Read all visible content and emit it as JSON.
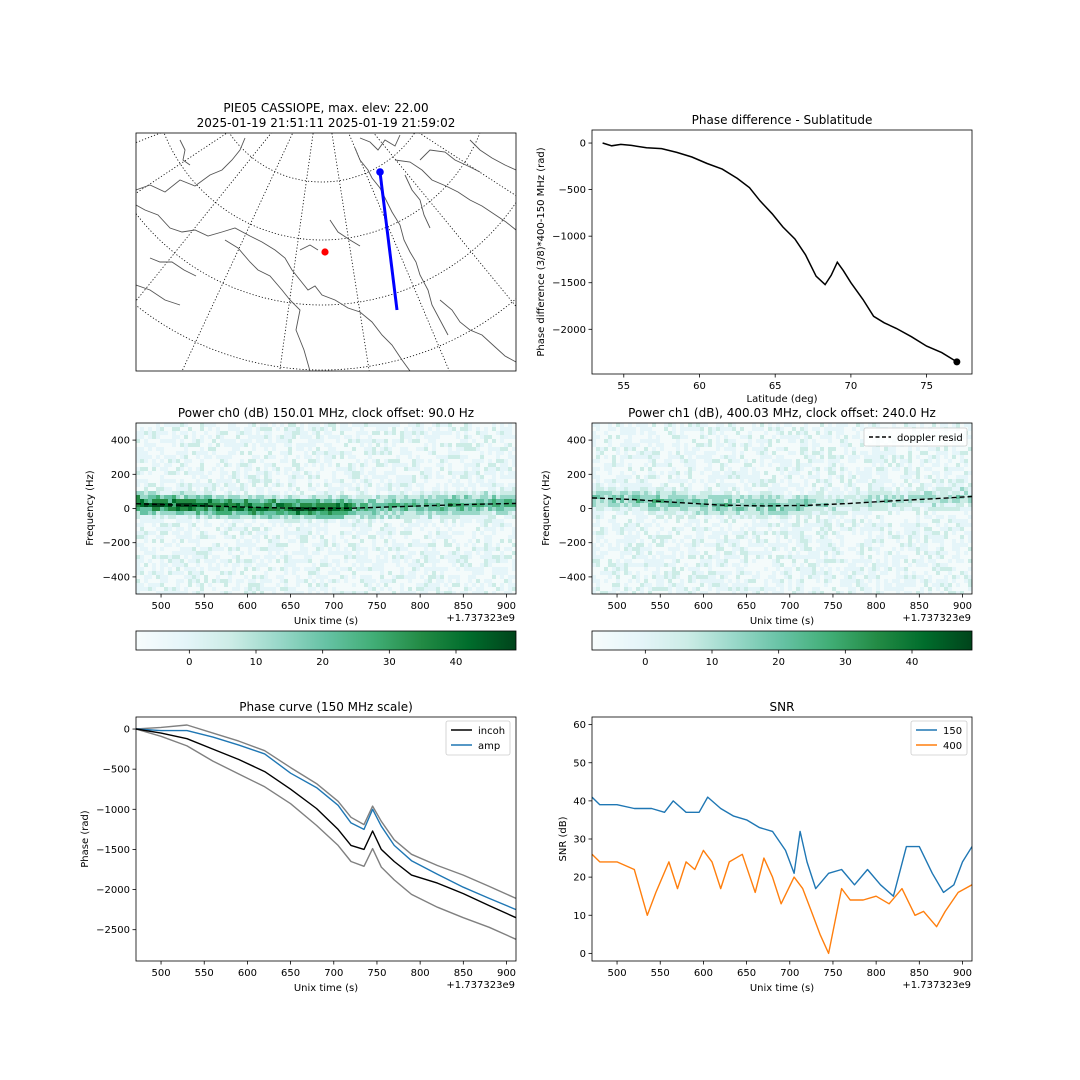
{
  "map_panel": {
    "title_line1": "PIE05 CASSIOPE, max. elev: 22.00",
    "title_line2": "2025-01-19 21:51:11 2025-01-19 21:59:02",
    "colors": {
      "track": "#0000ff",
      "start_marker": "#0000ff",
      "station": "#ff0000",
      "coast": "#555555",
      "graticule": "#000000"
    }
  },
  "chart_data": [
    {
      "id": "sublat",
      "type": "line",
      "title": "Phase difference - Sublatitude",
      "xlabel": "Latitude (deg)",
      "ylabel": "Phase difference (3/8)*400-150 MHz (rad)",
      "xlim": [
        52.9,
        78.0
      ],
      "ylim": [
        -2480,
        140
      ],
      "xticks": [
        55,
        60,
        65,
        70,
        75
      ],
      "yticks": [
        0,
        -500,
        -1000,
        -1500,
        -2000
      ],
      "series": [
        {
          "color": "#000000",
          "x": [
            53.6,
            54.2,
            54.8,
            55.5,
            56.5,
            57.5,
            58.5,
            59.5,
            60.5,
            61.5,
            62.5,
            63.3,
            64.0,
            64.8,
            65.5,
            66.3,
            67.0,
            67.7,
            68.3,
            68.7,
            69.1,
            69.5,
            70.0,
            70.8,
            71.5,
            72.2,
            73.0,
            74.0,
            75.0,
            76.0,
            77.0
          ],
          "y": [
            0,
            -30,
            -15,
            -25,
            -50,
            -60,
            -100,
            -150,
            -220,
            -280,
            -380,
            -480,
            -620,
            -760,
            -900,
            -1030,
            -1200,
            -1430,
            -1520,
            -1420,
            -1280,
            -1370,
            -1500,
            -1680,
            -1860,
            -1930,
            -1990,
            -2080,
            -2180,
            -2250,
            -2350
          ]
        }
      ],
      "end_marker": {
        "x": 77.0,
        "y": -2350
      }
    },
    {
      "id": "ch0",
      "type": "heatmap",
      "title": "Power ch0 (dB) 150.01 MHz, clock offset: 90.0 Hz",
      "xlabel": "Unix time (s)",
      "ylabel": "Frequency (Hz)",
      "offset_text": "+1.737323e9",
      "xlim": [
        471,
        911
      ],
      "ylim": [
        -500,
        500
      ],
      "xticks": [
        500,
        550,
        600,
        650,
        700,
        750,
        800,
        850,
        900
      ],
      "yticks": [
        400,
        200,
        0,
        -200,
        -400
      ],
      "doppler_x": [
        471,
        520,
        570,
        620,
        670,
        720,
        770,
        820,
        870,
        911
      ],
      "doppler_y": [
        28,
        20,
        12,
        5,
        0,
        2,
        10,
        18,
        25,
        30
      ],
      "colorbar": {
        "ticks": [
          0,
          10,
          20,
          30,
          40
        ],
        "range": [
          -8,
          49
        ]
      }
    },
    {
      "id": "ch1",
      "type": "heatmap",
      "title": "Power ch1 (dB), 400.03 MHz, clock offset: 240.0 Hz",
      "xlabel": "Unix time (s)",
      "ylabel": "Frequency (Hz)",
      "offset_text": "+1.737323e9",
      "legend": [
        "doppler resid"
      ],
      "xlim": [
        471,
        911
      ],
      "ylim": [
        -500,
        500
      ],
      "xticks": [
        500,
        550,
        600,
        650,
        700,
        750,
        800,
        850,
        900
      ],
      "yticks": [
        400,
        200,
        0,
        -200,
        -400
      ],
      "doppler_x": [
        471,
        520,
        570,
        620,
        670,
        720,
        770,
        820,
        870,
        911
      ],
      "doppler_y": [
        62,
        52,
        35,
        20,
        15,
        18,
        30,
        45,
        58,
        70
      ],
      "colorbar": {
        "ticks": [
          0,
          10,
          20,
          30,
          40
        ],
        "range": [
          -8,
          49
        ]
      }
    },
    {
      "id": "phase",
      "type": "line",
      "title": "Phase curve (150 MHz scale)",
      "xlabel": "Unix time (s)",
      "ylabel": "Phase (rad)",
      "offset_text": "+1.737323e9",
      "xlim": [
        471,
        911
      ],
      "ylim": [
        -2890,
        150
      ],
      "xticks": [
        500,
        550,
        600,
        650,
        700,
        750,
        800,
        850,
        900
      ],
      "yticks": [
        0,
        -500,
        -1000,
        -1500,
        -2000,
        -2500
      ],
      "legend": [
        "incoh",
        "amp"
      ],
      "series": [
        {
          "name": "incoh",
          "color": "#000000",
          "x": [
            471,
            500,
            530,
            560,
            590,
            620,
            650,
            680,
            705,
            720,
            735,
            745,
            755,
            770,
            790,
            820,
            850,
            880,
            911
          ],
          "y": [
            0,
            -50,
            -120,
            -250,
            -380,
            -530,
            -750,
            -990,
            -1250,
            -1450,
            -1500,
            -1270,
            -1500,
            -1650,
            -1820,
            -1920,
            -2050,
            -2200,
            -2350
          ]
        },
        {
          "name": "amp",
          "color": "#1f77b4",
          "x": [
            471,
            500,
            530,
            560,
            590,
            620,
            650,
            680,
            705,
            720,
            735,
            745,
            755,
            770,
            790,
            820,
            850,
            880,
            911
          ],
          "y": [
            0,
            -20,
            -20,
            -100,
            -200,
            -310,
            -550,
            -730,
            -950,
            -1170,
            -1250,
            -1000,
            -1210,
            -1450,
            -1640,
            -1810,
            -1970,
            -2110,
            -2250
          ]
        },
        {
          "name": "",
          "color": "#808080",
          "x": [
            471,
            500,
            530,
            560,
            590,
            620,
            650,
            680,
            705,
            720,
            735,
            745,
            755,
            770,
            790,
            820,
            850,
            880,
            911
          ],
          "y": [
            0,
            20,
            50,
            -50,
            -150,
            -270,
            -480,
            -680,
            -900,
            -1100,
            -1190,
            -960,
            -1150,
            -1380,
            -1560,
            -1700,
            -1820,
            -1960,
            -2110
          ]
        },
        {
          "name": "",
          "color": "#808080",
          "x": [
            471,
            500,
            530,
            560,
            590,
            620,
            650,
            680,
            705,
            720,
            735,
            745,
            755,
            770,
            790,
            820,
            850,
            880,
            911
          ],
          "y": [
            0,
            -90,
            -210,
            -400,
            -560,
            -720,
            -930,
            -1200,
            -1450,
            -1650,
            -1710,
            -1490,
            -1720,
            -1880,
            -2060,
            -2220,
            -2350,
            -2470,
            -2620
          ]
        }
      ]
    },
    {
      "id": "snr",
      "type": "line",
      "title": "SNR",
      "xlabel": "Unix time (s)",
      "ylabel": "SNR (dB)",
      "offset_text": "+1.737323e9",
      "xlim": [
        471,
        911
      ],
      "ylim": [
        -2,
        62
      ],
      "xticks": [
        500,
        550,
        600,
        650,
        700,
        750,
        800,
        850,
        900
      ],
      "yticks": [
        0,
        10,
        20,
        30,
        40,
        50,
        60
      ],
      "legend": [
        "150",
        "400"
      ],
      "series": [
        {
          "name": "150",
          "color": "#1f77b4",
          "x": [
            471,
            480,
            500,
            520,
            540,
            555,
            565,
            580,
            595,
            605,
            620,
            635,
            650,
            665,
            680,
            695,
            705,
            712,
            720,
            730,
            745,
            760,
            775,
            790,
            805,
            820,
            835,
            850,
            865,
            878,
            890,
            900,
            911
          ],
          "y": [
            41,
            39,
            39,
            38,
            38,
            37,
            40,
            37,
            37,
            41,
            38,
            36,
            35,
            33,
            32,
            27,
            21,
            32,
            24,
            17,
            21,
            22,
            18,
            22,
            18,
            15,
            28,
            28,
            21,
            16,
            18,
            24,
            28
          ]
        },
        {
          "name": "400",
          "color": "#ff7f0e",
          "x": [
            471,
            480,
            500,
            520,
            535,
            545,
            560,
            570,
            580,
            590,
            600,
            610,
            620,
            630,
            645,
            660,
            670,
            680,
            690,
            705,
            715,
            725,
            735,
            745,
            760,
            770,
            785,
            800,
            815,
            830,
            845,
            855,
            870,
            880,
            895,
            911
          ],
          "y": [
            26,
            24,
            24,
            22,
            10,
            16,
            24,
            17,
            24,
            22,
            27,
            24,
            17,
            24,
            26,
            16,
            25,
            20,
            13,
            20,
            17,
            11,
            5,
            0,
            17,
            14,
            14,
            15,
            13,
            17,
            10,
            11,
            7,
            11,
            16,
            18
          ]
        }
      ]
    }
  ]
}
